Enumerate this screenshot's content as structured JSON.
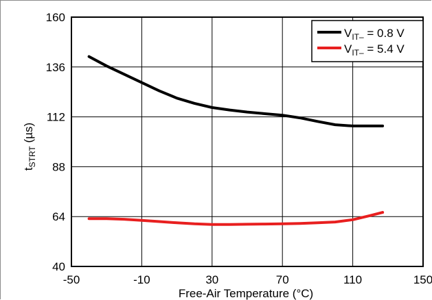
{
  "chart_data": {
    "type": "line",
    "xlabel": "Free-Air Temperature (°C)",
    "ylabel_main": "t",
    "ylabel_sub": "STRT",
    "ylabel_unit": " (µs)",
    "xlim": [
      -50,
      150
    ],
    "ylim": [
      40,
      160
    ],
    "xticks": [
      -50,
      -10,
      30,
      70,
      110,
      150
    ],
    "yticks": [
      40,
      64,
      88,
      112,
      136,
      160
    ],
    "grid": true,
    "legend_position": "top-right",
    "series": [
      {
        "name_main": "V",
        "name_sub": "IT–",
        "name_rest": " = 0.8 V",
        "color": "#000000",
        "x": [
          -40,
          -30,
          -20,
          -10,
          0,
          10,
          20,
          30,
          40,
          50,
          60,
          70,
          80,
          90,
          100,
          110,
          120,
          127
        ],
        "y": [
          141,
          136.5,
          132.5,
          128.5,
          124.5,
          121,
          118.5,
          116.5,
          115.3,
          114.3,
          113.5,
          112.8,
          111.5,
          109.8,
          108.2,
          107.6,
          107.6,
          107.6
        ]
      },
      {
        "name_main": "V",
        "name_sub": "IT–",
        "name_rest": " = 5.4 V",
        "color": "#e81f1f",
        "x": [
          -40,
          -30,
          -20,
          -10,
          0,
          10,
          20,
          30,
          40,
          50,
          60,
          70,
          80,
          90,
          100,
          110,
          120,
          127
        ],
        "y": [
          63,
          63,
          62.7,
          62.2,
          61.6,
          61,
          60.5,
          60.2,
          60.2,
          60.3,
          60.4,
          60.5,
          60.7,
          61,
          61.4,
          62.5,
          64.5,
          66
        ]
      }
    ]
  }
}
